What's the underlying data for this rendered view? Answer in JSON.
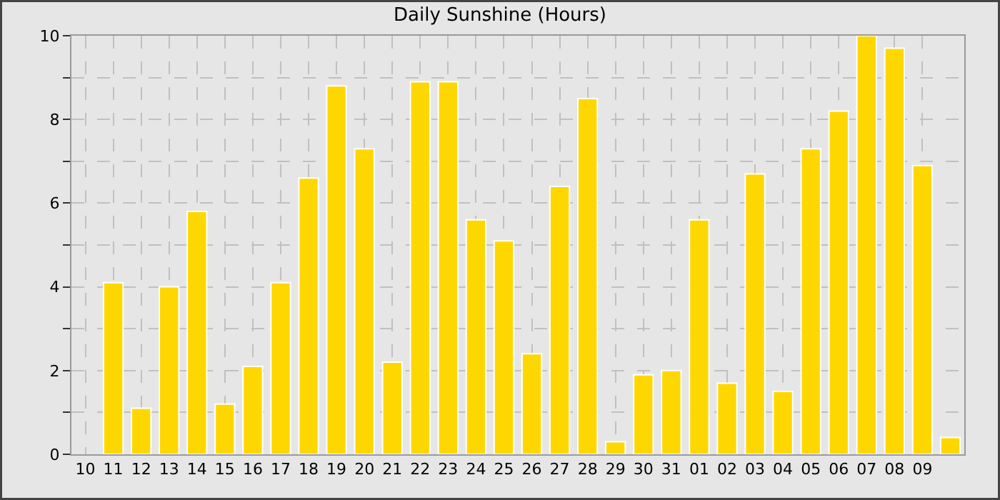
{
  "chart_data": {
    "type": "bar",
    "title": "Daily Sunshine (Hours)",
    "categories": [
      "10",
      "11",
      "12",
      "13",
      "14",
      "15",
      "16",
      "17",
      "18",
      "19",
      "20",
      "21",
      "22",
      "23",
      "24",
      "25",
      "26",
      "27",
      "28",
      "29",
      "30",
      "31",
      "01",
      "02",
      "03",
      "04",
      "05",
      "06",
      "07",
      "08",
      "09",
      null
    ],
    "values": [
      null,
      4.1,
      1.1,
      4.0,
      5.8,
      1.2,
      2.1,
      4.1,
      6.6,
      8.8,
      7.3,
      2.2,
      8.9,
      8.9,
      5.6,
      5.1,
      2.4,
      6.4,
      8.5,
      0.3,
      1.9,
      2.0,
      5.6,
      1.7,
      6.7,
      1.5,
      7.3,
      8.2,
      10.0,
      9.7,
      6.9,
      0.4
    ],
    "color": "#ffd700",
    "ylim": [
      0,
      10
    ],
    "yticks": [
      0,
      {
        "value": 1,
        "label": null
      },
      2,
      {
        "value": 3,
        "label": null
      },
      4,
      {
        "value": 5,
        "label": null
      },
      6,
      {
        "value": 7,
        "label": null
      },
      8,
      {
        "value": 9,
        "label": null
      },
      10
    ],
    "grid": true,
    "legend": false
  }
}
